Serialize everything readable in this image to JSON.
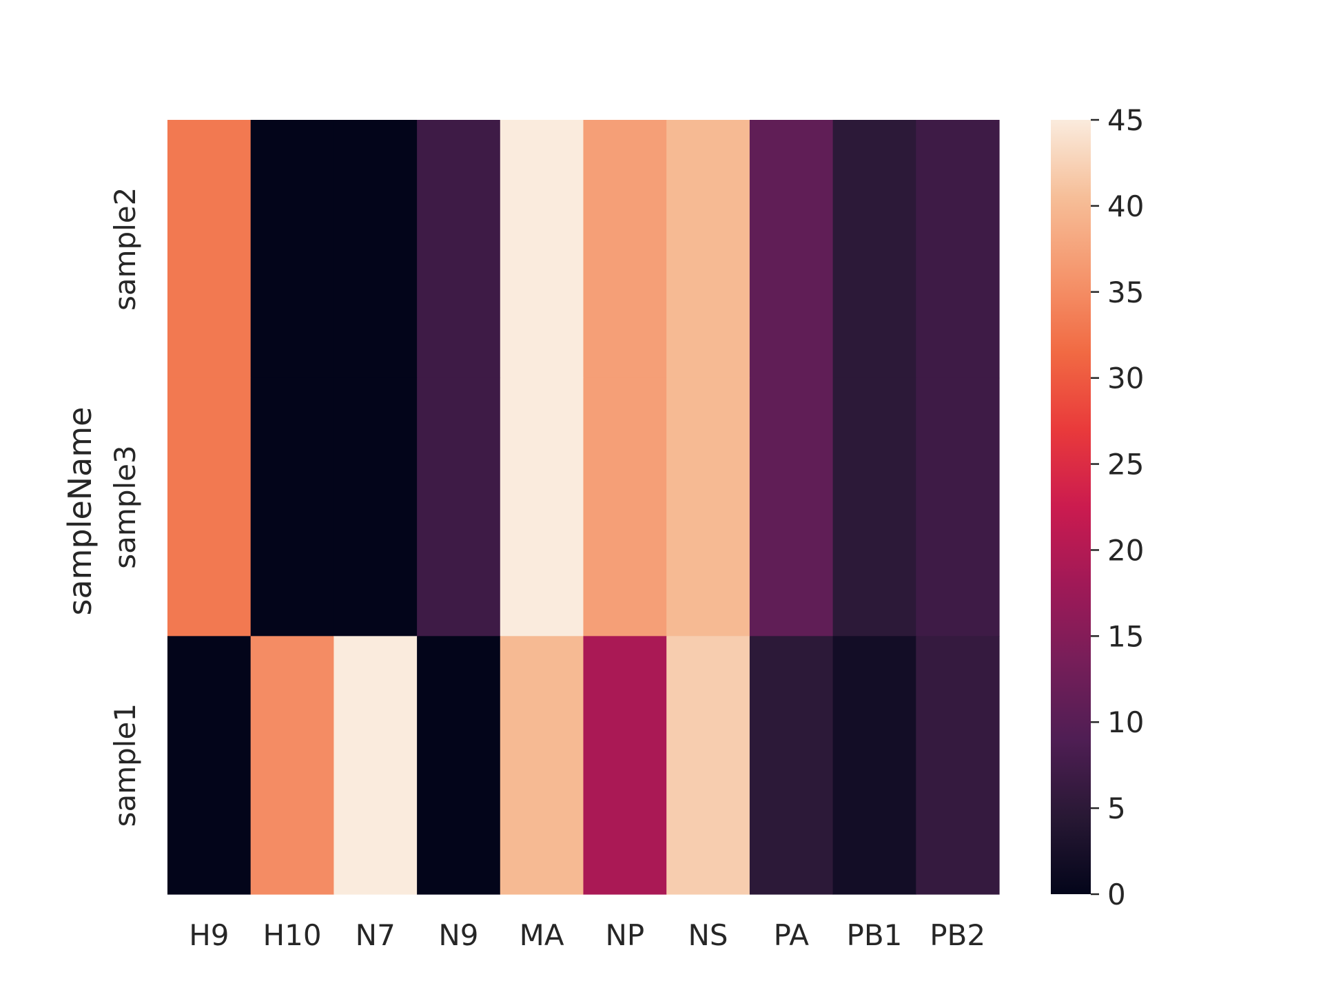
{
  "chart_data": {
    "type": "heatmap",
    "colormap": "rocket",
    "ylabel": "sampleName",
    "xlabel": "",
    "x_categories": [
      "H9",
      "H10",
      "N7",
      "N9",
      "MA",
      "NP",
      "NS",
      "PA",
      "PB1",
      "PB2"
    ],
    "y_categories": [
      "sample2",
      "sample3",
      "sample1"
    ],
    "values": [
      [
        33,
        0,
        0,
        7,
        45,
        37,
        40,
        11,
        5,
        7
      ],
      [
        33,
        0,
        0,
        7,
        45,
        37,
        40,
        11,
        5,
        7
      ],
      [
        0,
        35,
        45,
        0,
        40,
        19,
        42,
        5,
        2,
        6
      ]
    ],
    "colorbar": {
      "range": [
        0,
        45
      ],
      "ticks": [
        "0",
        "5",
        "10",
        "15",
        "20",
        "25",
        "30",
        "35",
        "40",
        "45"
      ]
    }
  }
}
